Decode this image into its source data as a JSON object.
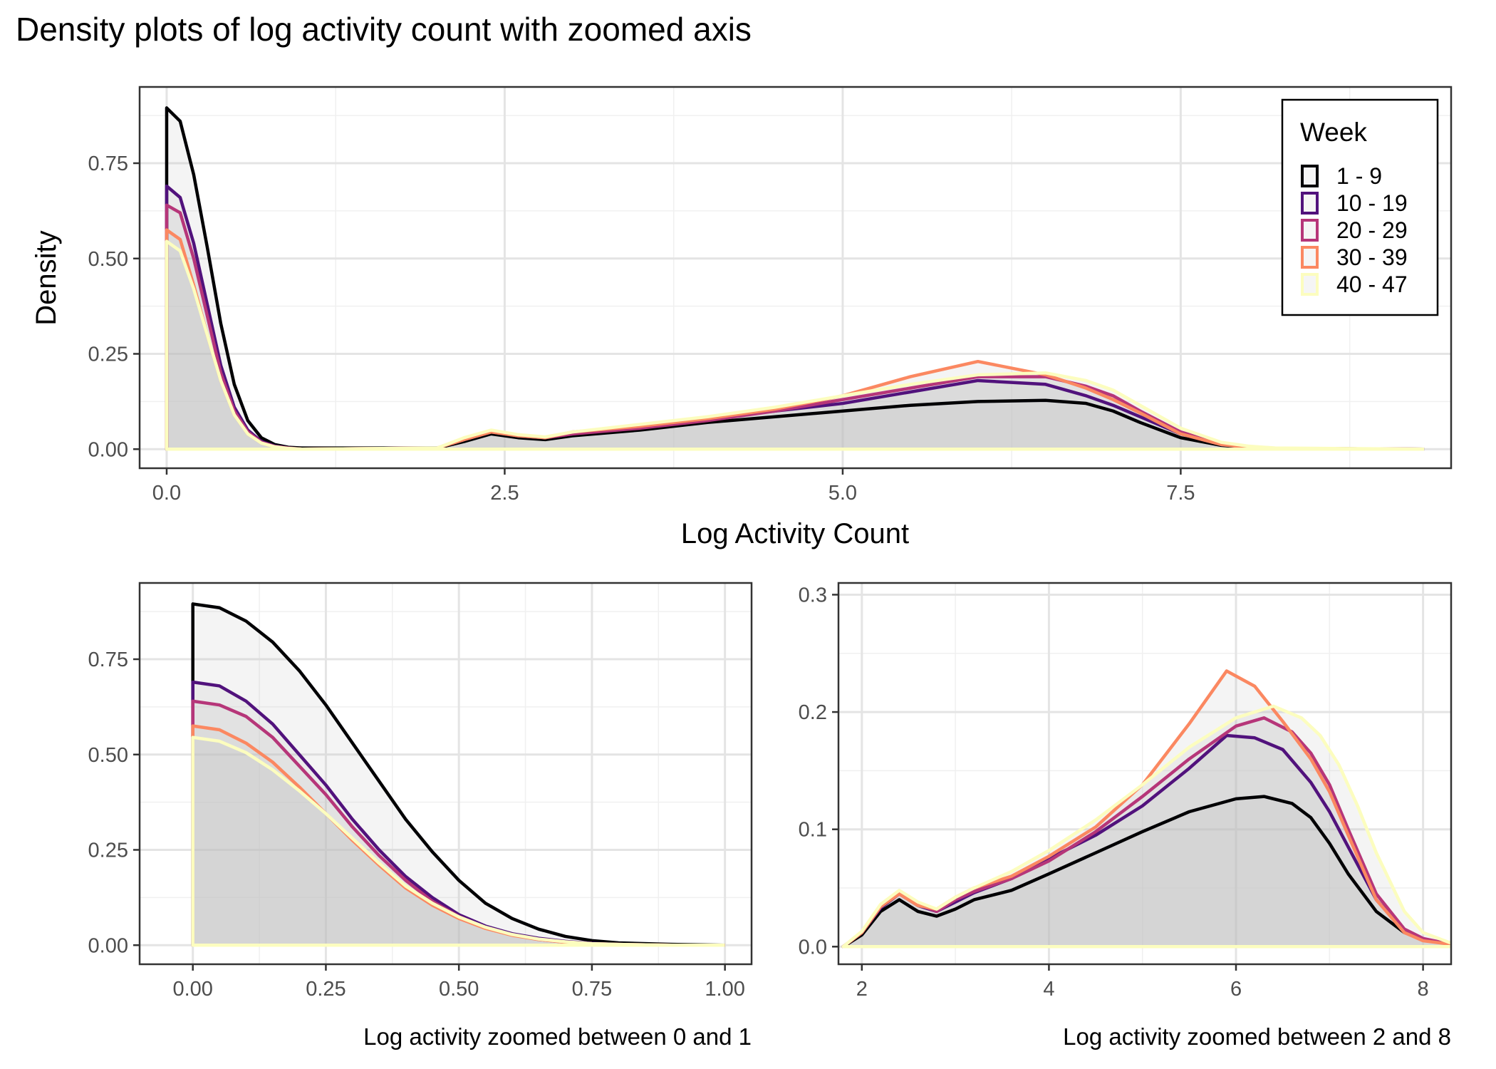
{
  "page": {
    "title": "Density plots of log activity count with zoomed axis"
  },
  "legend": {
    "title": "Week",
    "placement": "top-right",
    "entries": [
      {
        "label": "1 - 9",
        "color": "#000004"
      },
      {
        "label": "10 - 19",
        "color": "#51127C"
      },
      {
        "label": "20 - 29",
        "color": "#B63679"
      },
      {
        "label": "30 - 39",
        "color": "#FB8861"
      },
      {
        "label": "40 - 47",
        "color": "#FCFDBF"
      }
    ]
  },
  "chart_data": [
    {
      "type": "area",
      "panel": "top",
      "xlabel": "Log Activity Count",
      "ylabel": "Density",
      "xlim": [
        -0.2,
        9.5
      ],
      "ylim": [
        -0.05,
        0.95
      ],
      "xticks": [
        0.0,
        2.5,
        5.0,
        7.5
      ],
      "xtick_labels": [
        "0.0",
        "2.5",
        "5.0",
        "7.5"
      ],
      "yticks": [
        0.0,
        0.25,
        0.5,
        0.75
      ],
      "ytick_labels": [
        "0.00",
        "0.25",
        "0.50",
        "0.75"
      ],
      "grid": true,
      "series": [
        {
          "name": "1 - 9",
          "x": [
            0,
            0.1,
            0.2,
            0.3,
            0.4,
            0.5,
            0.6,
            0.7,
            0.8,
            0.9,
            1.0,
            2.0,
            2.2,
            2.4,
            2.6,
            2.8,
            3.0,
            3.5,
            4.0,
            4.5,
            5.0,
            5.5,
            6.0,
            6.5,
            6.8,
            7.0,
            7.2,
            7.5,
            7.8,
            8.0,
            8.2,
            9.3
          ],
          "y": [
            0.895,
            0.86,
            0.72,
            0.53,
            0.33,
            0.17,
            0.075,
            0.03,
            0.012,
            0.005,
            0.003,
            0.003,
            0.02,
            0.04,
            0.03,
            0.025,
            0.035,
            0.05,
            0.07,
            0.085,
            0.1,
            0.115,
            0.125,
            0.128,
            0.12,
            0.1,
            0.07,
            0.03,
            0.01,
            0.004,
            0.002,
            0.0
          ]
        },
        {
          "name": "10 - 19",
          "x": [
            0,
            0.1,
            0.2,
            0.3,
            0.4,
            0.5,
            0.6,
            0.7,
            0.8,
            0.9,
            1.0,
            2.0,
            2.2,
            2.4,
            2.6,
            2.8,
            3.0,
            3.5,
            4.0,
            4.5,
            5.0,
            5.5,
            6.0,
            6.5,
            6.8,
            7.0,
            7.2,
            7.5,
            7.8,
            8.0,
            8.2,
            9.3
          ],
          "y": [
            0.69,
            0.66,
            0.54,
            0.38,
            0.22,
            0.11,
            0.05,
            0.02,
            0.008,
            0.003,
            0.0,
            0.003,
            0.025,
            0.045,
            0.035,
            0.03,
            0.04,
            0.06,
            0.08,
            0.1,
            0.12,
            0.15,
            0.18,
            0.17,
            0.14,
            0.115,
            0.085,
            0.04,
            0.012,
            0.005,
            0.002,
            0.0
          ]
        },
        {
          "name": "20 - 29",
          "x": [
            0,
            0.1,
            0.2,
            0.3,
            0.4,
            0.5,
            0.6,
            0.7,
            0.8,
            0.9,
            1.0,
            2.0,
            2.2,
            2.4,
            2.6,
            2.8,
            3.0,
            3.5,
            4.0,
            4.5,
            5.0,
            5.5,
            6.0,
            6.5,
            6.8,
            7.0,
            7.2,
            7.5,
            7.8,
            8.0,
            8.2,
            9.3
          ],
          "y": [
            0.64,
            0.62,
            0.5,
            0.35,
            0.2,
            0.1,
            0.045,
            0.018,
            0.007,
            0.003,
            0.0,
            0.003,
            0.025,
            0.047,
            0.035,
            0.03,
            0.04,
            0.055,
            0.075,
            0.1,
            0.13,
            0.16,
            0.19,
            0.19,
            0.165,
            0.14,
            0.1,
            0.045,
            0.014,
            0.006,
            0.002,
            0.0
          ]
        },
        {
          "name": "30 - 39",
          "x": [
            0,
            0.1,
            0.2,
            0.3,
            0.4,
            0.5,
            0.6,
            0.7,
            0.8,
            0.9,
            1.0,
            2.0,
            2.2,
            2.4,
            2.6,
            2.8,
            3.0,
            3.5,
            4.0,
            4.5,
            5.0,
            5.5,
            6.0,
            6.5,
            6.8,
            7.0,
            7.2,
            7.5,
            7.8,
            8.0,
            8.2,
            9.3
          ],
          "y": [
            0.575,
            0.55,
            0.43,
            0.3,
            0.18,
            0.09,
            0.04,
            0.016,
            0.006,
            0.002,
            0.0,
            0.003,
            0.025,
            0.045,
            0.035,
            0.03,
            0.045,
            0.06,
            0.08,
            0.105,
            0.14,
            0.19,
            0.23,
            0.195,
            0.16,
            0.13,
            0.095,
            0.04,
            0.012,
            0.005,
            0.002,
            0.0
          ]
        },
        {
          "name": "40 - 47",
          "x": [
            0,
            0.1,
            0.2,
            0.3,
            0.4,
            0.5,
            0.6,
            0.7,
            0.8,
            0.9,
            1.0,
            2.0,
            2.2,
            2.4,
            2.6,
            2.8,
            3.0,
            3.5,
            4.0,
            4.5,
            5.0,
            5.5,
            6.0,
            6.5,
            6.8,
            7.0,
            7.2,
            7.5,
            7.8,
            8.0,
            8.2,
            9.3
          ],
          "y": [
            0.545,
            0.52,
            0.42,
            0.3,
            0.18,
            0.09,
            0.04,
            0.016,
            0.006,
            0.002,
            0.0,
            0.003,
            0.03,
            0.05,
            0.038,
            0.032,
            0.045,
            0.065,
            0.085,
            0.11,
            0.14,
            0.17,
            0.195,
            0.2,
            0.18,
            0.155,
            0.115,
            0.055,
            0.018,
            0.008,
            0.003,
            0.0
          ]
        }
      ]
    },
    {
      "type": "area",
      "panel": "bottom-left",
      "xlabel": "Log activity zoomed between 0 and 1",
      "ylabel": "",
      "xlim": [
        -0.1,
        1.05
      ],
      "ylim": [
        -0.05,
        0.95
      ],
      "xticks": [
        0.0,
        0.25,
        0.5,
        0.75,
        1.0
      ],
      "xtick_labels": [
        "0.00",
        "0.25",
        "0.50",
        "0.75",
        "1.00"
      ],
      "yticks": [
        0.0,
        0.25,
        0.5,
        0.75
      ],
      "ytick_labels": [
        "0.00",
        "0.25",
        "0.50",
        "0.75"
      ],
      "grid": true,
      "series": [
        {
          "name": "1 - 9",
          "x": [
            0,
            0.05,
            0.1,
            0.15,
            0.2,
            0.25,
            0.3,
            0.35,
            0.4,
            0.45,
            0.5,
            0.55,
            0.6,
            0.65,
            0.7,
            0.75,
            0.8,
            0.9,
            1.0
          ],
          "y": [
            0.895,
            0.885,
            0.85,
            0.795,
            0.72,
            0.63,
            0.53,
            0.43,
            0.33,
            0.245,
            0.17,
            0.11,
            0.07,
            0.042,
            0.023,
            0.012,
            0.006,
            0.002,
            0.0
          ]
        },
        {
          "name": "10 - 19",
          "x": [
            0,
            0.05,
            0.1,
            0.15,
            0.2,
            0.25,
            0.3,
            0.35,
            0.4,
            0.45,
            0.5,
            0.55,
            0.6,
            0.65,
            0.7,
            0.75,
            0.8,
            0.9,
            1.0
          ],
          "y": [
            0.69,
            0.68,
            0.64,
            0.58,
            0.5,
            0.42,
            0.33,
            0.25,
            0.18,
            0.125,
            0.08,
            0.05,
            0.03,
            0.018,
            0.01,
            0.005,
            0.002,
            0.0,
            0.0
          ]
        },
        {
          "name": "20 - 29",
          "x": [
            0,
            0.05,
            0.1,
            0.15,
            0.2,
            0.25,
            0.3,
            0.35,
            0.4,
            0.45,
            0.5,
            0.55,
            0.6,
            0.65,
            0.7,
            0.75,
            0.8,
            0.9,
            1.0
          ],
          "y": [
            0.64,
            0.63,
            0.6,
            0.545,
            0.47,
            0.395,
            0.31,
            0.235,
            0.17,
            0.115,
            0.075,
            0.046,
            0.027,
            0.015,
            0.008,
            0.004,
            0.002,
            0.0,
            0.0
          ]
        },
        {
          "name": "30 - 39",
          "x": [
            0,
            0.05,
            0.1,
            0.15,
            0.2,
            0.25,
            0.3,
            0.35,
            0.4,
            0.45,
            0.5,
            0.55,
            0.6,
            0.65,
            0.7,
            0.75,
            0.8,
            0.9,
            1.0
          ],
          "y": [
            0.575,
            0.565,
            0.53,
            0.48,
            0.415,
            0.345,
            0.275,
            0.21,
            0.15,
            0.105,
            0.07,
            0.044,
            0.026,
            0.015,
            0.008,
            0.004,
            0.002,
            0.0,
            0.0
          ]
        },
        {
          "name": "40 - 47",
          "x": [
            0,
            0.05,
            0.1,
            0.15,
            0.2,
            0.25,
            0.3,
            0.35,
            0.4,
            0.45,
            0.5,
            0.55,
            0.6,
            0.65,
            0.7,
            0.75,
            0.8,
            0.9,
            1.0
          ],
          "y": [
            0.545,
            0.535,
            0.505,
            0.46,
            0.405,
            0.345,
            0.28,
            0.215,
            0.155,
            0.11,
            0.074,
            0.047,
            0.028,
            0.016,
            0.009,
            0.004,
            0.002,
            0.0,
            0.0
          ]
        }
      ]
    },
    {
      "type": "area",
      "panel": "bottom-right",
      "xlabel": "Log activity zoomed between 2 and 8",
      "ylabel": "",
      "xlim": [
        1.75,
        8.3
      ],
      "ylim": [
        -0.015,
        0.31
      ],
      "xticks": [
        2,
        4,
        6,
        8
      ],
      "xtick_labels": [
        "2",
        "4",
        "6",
        "8"
      ],
      "yticks": [
        0.0,
        0.1,
        0.2,
        0.3
      ],
      "ytick_labels": [
        "0.0",
        "0.1",
        "0.2",
        "0.3"
      ],
      "grid": true,
      "series": [
        {
          "name": "1 - 9",
          "x": [
            1.8,
            2.0,
            2.2,
            2.4,
            2.6,
            2.8,
            3.0,
            3.2,
            3.6,
            4.0,
            4.5,
            5.0,
            5.5,
            6.0,
            6.3,
            6.6,
            6.8,
            7.0,
            7.2,
            7.5,
            7.8,
            8.0,
            8.3
          ],
          "y": [
            0.0,
            0.01,
            0.03,
            0.04,
            0.03,
            0.026,
            0.032,
            0.04,
            0.048,
            0.062,
            0.08,
            0.098,
            0.115,
            0.126,
            0.128,
            0.122,
            0.11,
            0.088,
            0.062,
            0.03,
            0.012,
            0.006,
            0.002
          ]
        },
        {
          "name": "10 - 19",
          "x": [
            1.8,
            2.0,
            2.2,
            2.4,
            2.6,
            2.8,
            3.0,
            3.2,
            3.6,
            4.0,
            4.5,
            5.0,
            5.5,
            5.9,
            6.2,
            6.5,
            6.8,
            7.0,
            7.2,
            7.5,
            7.8,
            8.0,
            8.3
          ],
          "y": [
            0.0,
            0.012,
            0.033,
            0.045,
            0.035,
            0.03,
            0.038,
            0.046,
            0.058,
            0.075,
            0.095,
            0.12,
            0.152,
            0.18,
            0.178,
            0.168,
            0.14,
            0.115,
            0.085,
            0.04,
            0.013,
            0.006,
            0.002
          ]
        },
        {
          "name": "20 - 29",
          "x": [
            1.8,
            2.0,
            2.2,
            2.4,
            2.6,
            2.8,
            3.0,
            3.2,
            3.6,
            4.0,
            4.5,
            5.0,
            5.5,
            6.0,
            6.3,
            6.6,
            6.8,
            7.0,
            7.2,
            7.5,
            7.8,
            8.0,
            8.3
          ],
          "y": [
            0.0,
            0.012,
            0.035,
            0.047,
            0.036,
            0.03,
            0.04,
            0.047,
            0.058,
            0.073,
            0.098,
            0.128,
            0.16,
            0.188,
            0.195,
            0.183,
            0.165,
            0.138,
            0.1,
            0.045,
            0.015,
            0.007,
            0.002
          ]
        },
        {
          "name": "30 - 39",
          "x": [
            1.8,
            2.0,
            2.2,
            2.4,
            2.6,
            2.8,
            3.0,
            3.2,
            3.6,
            4.0,
            4.5,
            5.0,
            5.5,
            5.9,
            6.2,
            6.5,
            6.8,
            7.0,
            7.2,
            7.5,
            7.8,
            8.0,
            8.3
          ],
          "y": [
            0.0,
            0.012,
            0.034,
            0.045,
            0.035,
            0.032,
            0.042,
            0.05,
            0.06,
            0.077,
            0.102,
            0.138,
            0.19,
            0.235,
            0.222,
            0.192,
            0.16,
            0.132,
            0.095,
            0.04,
            0.012,
            0.005,
            0.002
          ]
        },
        {
          "name": "40 - 47",
          "x": [
            1.8,
            2.0,
            2.2,
            2.4,
            2.6,
            2.8,
            3.0,
            3.2,
            3.6,
            4.0,
            4.5,
            5.0,
            5.5,
            6.0,
            6.4,
            6.7,
            6.9,
            7.1,
            7.3,
            7.5,
            7.8,
            8.0,
            8.3
          ],
          "y": [
            0.0,
            0.013,
            0.036,
            0.048,
            0.038,
            0.032,
            0.042,
            0.05,
            0.064,
            0.082,
            0.108,
            0.138,
            0.17,
            0.195,
            0.205,
            0.195,
            0.18,
            0.155,
            0.12,
            0.08,
            0.03,
            0.012,
            0.003
          ]
        }
      ]
    }
  ]
}
